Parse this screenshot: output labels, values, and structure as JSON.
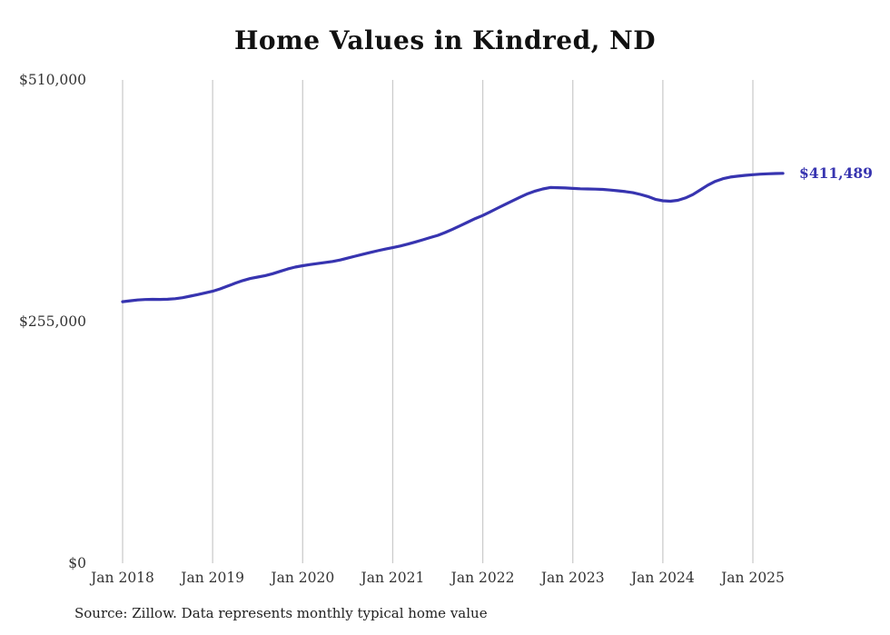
{
  "chart_data": {
    "type": "line",
    "title": "Home Values in Kindred, ND",
    "xlabel": "",
    "ylabel": "",
    "ylim": [
      0,
      510000
    ],
    "y_ticks": [
      0,
      255000,
      510000
    ],
    "y_tick_labels": [
      "$0",
      "$255,000",
      "$510,000"
    ],
    "x_tick_labels": [
      "Jan 2018",
      "Jan 2019",
      "Jan 2020",
      "Jan 2021",
      "Jan 2022",
      "Jan 2023",
      "Jan 2024",
      "Jan 2025"
    ],
    "grid": "vertical-only",
    "legend_position": "none",
    "line_color": "#3734b0",
    "grid_color": "#cccccc",
    "tick_color": "#333333",
    "end_label": "$411,489",
    "end_value": 411489,
    "x": [
      "2018-01",
      "2018-02",
      "2018-03",
      "2018-04",
      "2018-05",
      "2018-06",
      "2018-07",
      "2018-08",
      "2018-09",
      "2018-10",
      "2018-11",
      "2018-12",
      "2019-01",
      "2019-02",
      "2019-03",
      "2019-04",
      "2019-05",
      "2019-06",
      "2019-07",
      "2019-08",
      "2019-09",
      "2019-10",
      "2019-11",
      "2019-12",
      "2020-01",
      "2020-02",
      "2020-03",
      "2020-04",
      "2020-05",
      "2020-06",
      "2020-07",
      "2020-08",
      "2020-09",
      "2020-10",
      "2020-11",
      "2020-12",
      "2021-01",
      "2021-02",
      "2021-03",
      "2021-04",
      "2021-05",
      "2021-06",
      "2021-07",
      "2021-08",
      "2021-09",
      "2021-10",
      "2021-11",
      "2021-12",
      "2022-01",
      "2022-02",
      "2022-03",
      "2022-04",
      "2022-05",
      "2022-06",
      "2022-07",
      "2022-08",
      "2022-09",
      "2022-10",
      "2022-11",
      "2022-12",
      "2023-01",
      "2023-02",
      "2023-03",
      "2023-04",
      "2023-05",
      "2023-06",
      "2023-07",
      "2023-08",
      "2023-09",
      "2023-10",
      "2023-11",
      "2023-12",
      "2024-01",
      "2024-02",
      "2024-03",
      "2024-04",
      "2024-05",
      "2024-06",
      "2024-07",
      "2024-08",
      "2024-09",
      "2024-10",
      "2024-11",
      "2024-12",
      "2025-01",
      "2025-02",
      "2025-03",
      "2025-04",
      "2025-05"
    ],
    "values": [
      276000,
      277000,
      277800,
      278300,
      278500,
      278400,
      278600,
      279200,
      280200,
      281800,
      283500,
      285300,
      287000,
      289500,
      292500,
      295500,
      298200,
      300400,
      302000,
      303500,
      305500,
      308000,
      310500,
      312500,
      314000,
      315200,
      316300,
      317400,
      318500,
      320000,
      322000,
      324000,
      326000,
      328000,
      329800,
      331500,
      333000,
      334800,
      336800,
      339000,
      341300,
      343700,
      346000,
      349000,
      352500,
      356200,
      360000,
      363700,
      367000,
      370800,
      374800,
      378800,
      382600,
      386400,
      390000,
      392800,
      395000,
      396500,
      396300,
      396000,
      395500,
      395200,
      395000,
      394800,
      394500,
      393800,
      393000,
      392200,
      391000,
      389200,
      387000,
      384000,
      382500,
      382000,
      383000,
      385500,
      389000,
      394000,
      399000,
      403000,
      405800,
      407500,
      408500,
      409300,
      410000,
      410600,
      411000,
      411300,
      411489
    ]
  },
  "source": "Source: Zillow. Data represents monthly typical home value"
}
